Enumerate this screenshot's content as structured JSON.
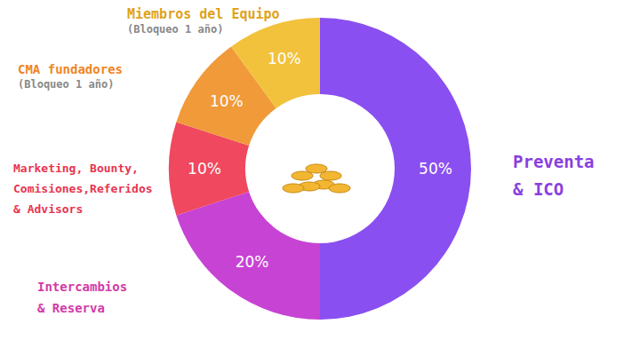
{
  "chart_data": {
    "type": "pie",
    "categories": [
      "Preventa\n& ICO",
      "Intercambios\n& Reserva",
      "Marketing, Bounty,\nComisiones,Referidos\n& Advisors",
      "CMA fundadores",
      "Miembros del Equipo"
    ],
    "values": [
      50,
      20,
      10,
      10,
      10
    ],
    "value_labels": [
      "50%",
      "20%",
      "10%",
      "10%",
      "10%"
    ],
    "colors": [
      "#8a4ff0",
      "#c743d4",
      "#f0485e",
      "#f09a3a",
      "#f2c23c"
    ],
    "data_labels": true,
    "annotations": [
      {
        "category": "CMA fundadores",
        "text": "(Bloqueo 1 año)"
      },
      {
        "category": "Miembros del Equipo",
        "text": "(Bloqueo 1 año)"
      }
    ]
  }
}
